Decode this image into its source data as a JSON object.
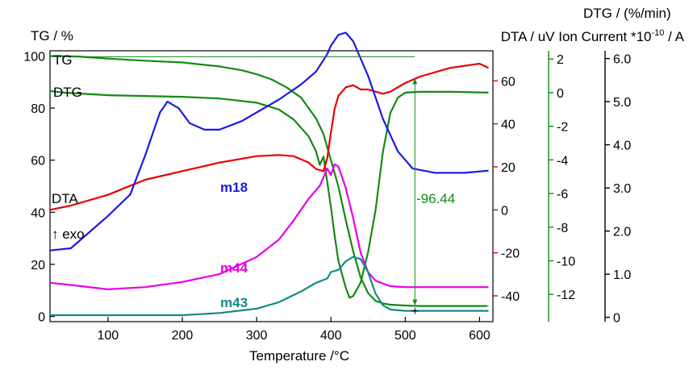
{
  "chart_data": {
    "type": "line",
    "xlabel": "Temperature /°C",
    "xlim": [
      22,
      618
    ],
    "xticks": [
      100,
      200,
      300,
      400,
      500,
      600
    ],
    "axes": {
      "tg": {
        "label": "TG / %",
        "color": "#000000",
        "range": [
          -2,
          102
        ],
        "ticks": [
          0,
          20,
          40,
          60,
          80,
          100
        ]
      },
      "dta": {
        "color": "#e60000",
        "range": [
          -52,
          74
        ],
        "ticks": [
          -40,
          -20,
          0,
          20,
          40,
          60
        ]
      },
      "dtg": {
        "color": "#138a13",
        "range": [
          -13.62,
          2.49
        ],
        "ticks": [
          -12,
          -10,
          -8,
          -6,
          -4,
          -2,
          0,
          2
        ]
      },
      "ion": {
        "color": "#000000",
        "range": [
          -0.1,
          6.18
        ],
        "ticks": [
          "0",
          "1.0",
          "2.0",
          "3.0",
          "4.0",
          "5.0",
          "6.0"
        ]
      },
      "right_title_line1": "DTG / (%/min)",
      "right_title_line2_prefix": "DTA / uV Ion Current *10",
      "right_title_exponent": "-10",
      "right_title_line2_suffix": " / A"
    },
    "labels": {
      "tg": "TG",
      "dtg": "DTG",
      "dta": "DTA",
      "exo": "↑ exo",
      "m18": "m18",
      "m44": "m44",
      "m43": "m43",
      "mass_loss": "-96.44"
    },
    "mass_loss_arrow": {
      "x": 513,
      "tg_top": 99.7,
      "tg_bottom": 4
    },
    "series": [
      {
        "name": "TG",
        "axis": "tg",
        "color": "#138a13",
        "x": [
          22,
          60,
          100,
          150,
          200,
          250,
          280,
          300,
          320,
          340,
          360,
          380,
          390,
          400,
          410,
          420,
          430,
          440,
          450,
          460,
          470,
          480,
          500,
          520,
          560,
          610
        ],
        "y": [
          100,
          99.8,
          99,
          98.2,
          97.5,
          96,
          94.5,
          93,
          91,
          88,
          84,
          76,
          70,
          60,
          50,
          37,
          25,
          15,
          9,
          6,
          5,
          4.5,
          4.2,
          4,
          4,
          4
        ]
      },
      {
        "name": "DTG",
        "axis": "dtg",
        "color": "#138a13",
        "x": [
          22,
          40,
          100,
          200,
          250,
          300,
          330,
          350,
          370,
          380,
          385,
          390,
          395,
          400,
          405,
          410,
          420,
          425,
          430,
          440,
          450,
          460,
          470,
          480,
          490,
          500,
          520,
          560,
          612
        ],
        "y": [
          0.1,
          0.0,
          -0.15,
          -0.25,
          -0.35,
          -0.6,
          -1.0,
          -1.6,
          -2.6,
          -3.5,
          -4.3,
          -3.8,
          -5.3,
          -6.8,
          -8.5,
          -10.0,
          -11.6,
          -12.2,
          -12.1,
          -11.3,
          -9.5,
          -7.0,
          -3.5,
          -1.2,
          -0.3,
          0.0,
          0.05,
          0.05,
          0.0
        ]
      },
      {
        "name": "DTA",
        "axis": "dta",
        "color": "#e60000",
        "x": [
          22,
          50,
          100,
          150,
          200,
          250,
          300,
          330,
          350,
          370,
          380,
          385,
          390,
          395,
          400,
          405,
          410,
          420,
          430,
          440,
          450,
          460,
          470,
          480,
          500,
          520,
          560,
          600,
          612
        ],
        "y": [
          0,
          2,
          7,
          14,
          18,
          22,
          25,
          25.5,
          25,
          22,
          19,
          18.5,
          18,
          24,
          36,
          47,
          53,
          57,
          58,
          56,
          56,
          55,
          54,
          55,
          59,
          62,
          66,
          68,
          66
        ]
      },
      {
        "name": "m18",
        "axis": "ion",
        "color": "#1a1ae6",
        "x": [
          22,
          50,
          80,
          100,
          130,
          150,
          170,
          180,
          195,
          210,
          230,
          250,
          280,
          300,
          330,
          360,
          380,
          395,
          400,
          410,
          420,
          430,
          450,
          470,
          490,
          510,
          540,
          580,
          612
        ],
        "y": [
          1.55,
          1.6,
          2.05,
          2.35,
          2.85,
          3.75,
          4.75,
          5.0,
          4.85,
          4.5,
          4.35,
          4.35,
          4.55,
          4.75,
          5.05,
          5.4,
          5.7,
          6.1,
          6.3,
          6.55,
          6.6,
          6.4,
          5.6,
          4.6,
          3.85,
          3.45,
          3.35,
          3.35,
          3.4
        ]
      },
      {
        "name": "m44",
        "axis": "ion",
        "color": "#e600e6",
        "x": [
          22,
          50,
          100,
          150,
          200,
          250,
          300,
          330,
          350,
          370,
          385,
          395,
          400,
          405,
          410,
          420,
          430,
          440,
          450,
          460,
          480,
          500,
          540,
          580,
          612
        ],
        "y": [
          0.8,
          0.75,
          0.65,
          0.7,
          0.82,
          1.0,
          1.4,
          1.8,
          2.25,
          2.75,
          3.05,
          3.45,
          3.3,
          3.55,
          3.5,
          3.0,
          2.3,
          1.5,
          1.05,
          0.85,
          0.72,
          0.7,
          0.7,
          0.7,
          0.7
        ]
      },
      {
        "name": "m43",
        "axis": "ion",
        "color": "#138a8a",
        "x": [
          22,
          100,
          200,
          250,
          300,
          330,
          360,
          380,
          395,
          400,
          410,
          420,
          430,
          440,
          450,
          460,
          470,
          480,
          500,
          540,
          580,
          612
        ],
        "y": [
          0.05,
          0.05,
          0.05,
          0.1,
          0.2,
          0.35,
          0.6,
          0.8,
          0.9,
          1.05,
          1.1,
          1.3,
          1.4,
          1.35,
          1.05,
          0.55,
          0.28,
          0.18,
          0.15,
          0.15,
          0.15,
          0.15
        ]
      }
    ]
  }
}
